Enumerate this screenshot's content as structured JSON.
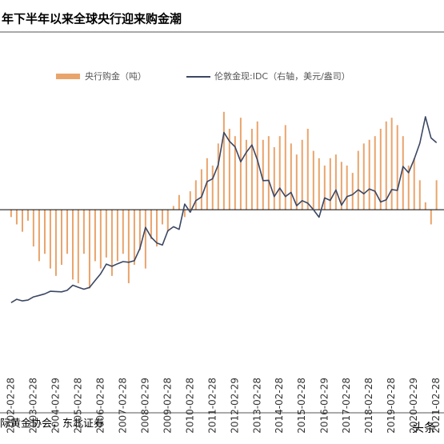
{
  "chart_data": {
    "type": "bar_line",
    "title": "年下半年以来全球央行迎来购金潮",
    "source": "际黄金协会，东北证券",
    "watermark": "头条",
    "xlim": [
      "2001-08-31",
      "2021-06-30"
    ],
    "xticks": [
      "2002-02-28",
      "2003-02-28",
      "2004-02-29",
      "2005-02-28",
      "2006-02-28",
      "2007-02-28",
      "2008-02-29",
      "2009-02-28",
      "2010-02-28",
      "2011-02-28",
      "2012-02-29",
      "2013-02-28",
      "2014-02-28",
      "2015-02-28",
      "2016-02-29",
      "2017-02-28",
      "2018-02-28",
      "2019-02-28",
      "2020-02-29",
      "2021-02-28"
    ],
    "ylim": [
      -150,
      160
    ],
    "y2lim": [
      140,
      2190
    ],
    "x": [
      "2002-02-28",
      "2002-05-31",
      "2002-08-31",
      "2002-11-30",
      "2003-02-28",
      "2003-05-31",
      "2003-08-31",
      "2003-11-30",
      "2004-02-29",
      "2004-05-31",
      "2004-08-31",
      "2004-11-30",
      "2005-02-28",
      "2005-05-31",
      "2005-08-31",
      "2005-11-30",
      "2006-02-28",
      "2006-05-31",
      "2006-08-31",
      "2006-11-30",
      "2007-02-28",
      "2007-05-31",
      "2007-08-31",
      "2007-11-30",
      "2008-02-29",
      "2008-05-31",
      "2008-08-31",
      "2008-11-30",
      "2009-02-28",
      "2009-05-31",
      "2009-08-31",
      "2009-11-30",
      "2010-02-28",
      "2010-05-31",
      "2010-08-31",
      "2010-11-30",
      "2011-02-28",
      "2011-05-31",
      "2011-08-31",
      "2011-11-30",
      "2012-02-29",
      "2012-05-31",
      "2012-08-31",
      "2012-11-30",
      "2013-02-28",
      "2013-05-31",
      "2013-08-31",
      "2013-11-30",
      "2014-02-28",
      "2014-05-31",
      "2014-08-31",
      "2014-11-30",
      "2015-02-28",
      "2015-05-31",
      "2015-08-31",
      "2015-11-30",
      "2016-02-29",
      "2016-05-31",
      "2016-08-31",
      "2016-11-30",
      "2017-02-28",
      "2017-05-31",
      "2017-08-31",
      "2017-11-30",
      "2018-02-28",
      "2018-05-31",
      "2018-08-31",
      "2018-11-30",
      "2019-02-28",
      "2019-05-31",
      "2019-08-31",
      "2019-11-30",
      "2020-02-29",
      "2020-05-31",
      "2020-08-31",
      "2020-11-30",
      "2021-02-28"
    ],
    "series": [
      {
        "name": "央行购金（吨）",
        "color": "#e9a46c",
        "values": [
          -10,
          -20,
          -30,
          -15,
          -50,
          -70,
          -60,
          -80,
          -90,
          -75,
          -60,
          -95,
          -100,
          -60,
          -107,
          -70,
          -80,
          -65,
          -90,
          -70,
          -60,
          -100,
          -75,
          -55,
          -80,
          -40,
          -50,
          -20,
          -30,
          5,
          20,
          -10,
          25,
          40,
          55,
          70,
          60,
          90,
          133,
          110,
          100,
          125,
          95,
          110,
          120,
          95,
          100,
          85,
          100,
          115,
          90,
          75,
          95,
          110,
          80,
          70,
          60,
          70,
          75,
          65,
          60,
          50,
          80,
          90,
          95,
          100,
          110,
          120,
          125,
          115,
          100,
          60,
          70,
          40,
          10,
          -20,
          40
        ]
      },
      {
        "name": "伦敦金现:IDC（右轴，美元/盎司）",
        "color": "#3b4763",
        "axis": "y2",
        "values": [
          296,
          326,
          312,
          319,
          348,
          361,
          375,
          398,
          396,
          393,
          407,
          453,
          434,
          417,
          433,
          495,
          556,
          643,
          623,
          646,
          665,
          659,
          673,
          783,
          972,
          885,
          833,
          814,
          942,
          979,
          955,
          1182,
          1109,
          1213,
          1246,
          1384,
          1410,
          1536,
          1826,
          1747,
          1697,
          1563,
          1648,
          1714,
          1578,
          1393,
          1396,
          1250,
          1326,
          1250,
          1287,
          1168,
          1213,
          1190,
          1132,
          1064,
          1238,
          1215,
          1309,
          1173,
          1249,
          1268,
          1311,
          1275,
          1318,
          1298,
          1201,
          1221,
          1313,
          1305,
          1520,
          1464,
          1585,
          1730,
          1968,
          1777,
          1734
        ]
      }
    ]
  }
}
